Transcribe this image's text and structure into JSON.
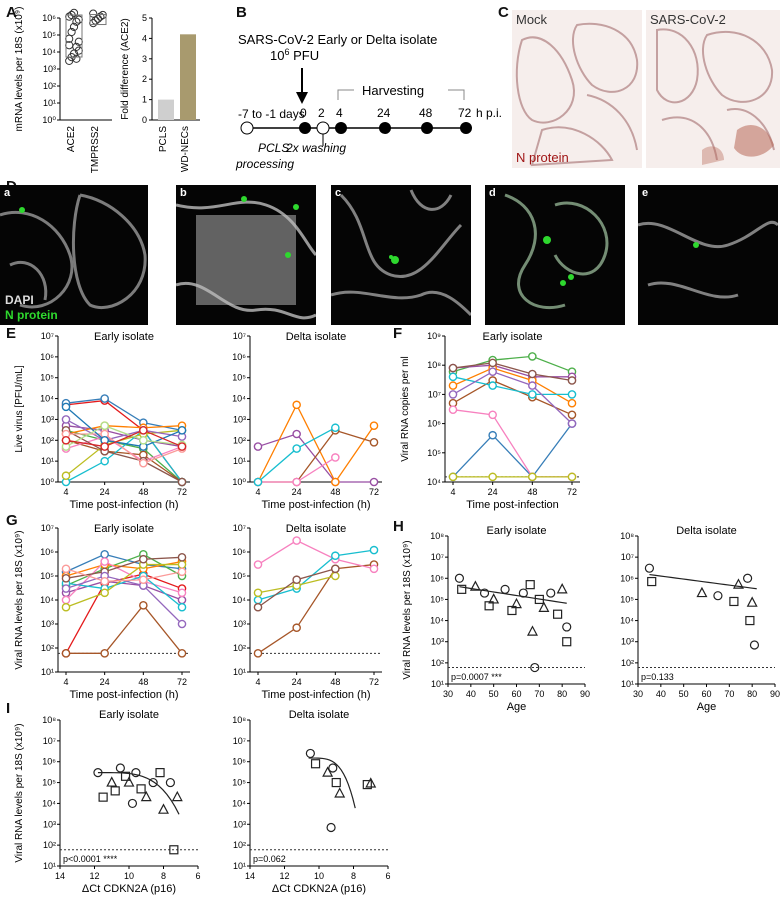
{
  "panels": {
    "A": {
      "label": "A",
      "left": {
        "ylabel": "mRNA levels per 18S (x10⁹)",
        "ticks": [
          "10⁰",
          "10¹",
          "10²",
          "10³",
          "10⁴",
          "10⁵",
          "10⁶"
        ],
        "categories": [
          "ACE2",
          "TMPRSS2"
        ]
      },
      "right": {
        "ylabel": "Fold difference (ACE2)",
        "ticks": [
          "0",
          "1",
          "2",
          "3",
          "4",
          "5"
        ],
        "categories": [
          "PCLS",
          "WD-NECs"
        ]
      }
    },
    "B": {
      "label": "B",
      "line1": "SARS-CoV-2 Early or Delta isolate",
      "line2": "10",
      "line2sup": "6",
      "line2rest": " PFU",
      "harvesting": "Harvesting",
      "pre": "-7 to -1 days",
      "times": [
        "0",
        "2",
        "4",
        "24",
        "48",
        "72"
      ],
      "unit": "h p.i.",
      "pcls1": "PCLS",
      "pcls2": "processing",
      "washing": "2x washing"
    },
    "C": {
      "label": "C",
      "mock": "Mock",
      "sars": "SARS-CoV-2",
      "nprotein": "N protein"
    },
    "D": {
      "label": "D",
      "sub": [
        "a",
        "b",
        "c",
        "d",
        "e"
      ],
      "dapi": "DAPI",
      "nprotein": "N protein"
    },
    "E": {
      "label": "E",
      "ylabel": "Live virus [PFU/mL]",
      "xlabel": "Time post-infection (h)",
      "ticks": [
        "10⁰",
        "10¹",
        "10²",
        "10³",
        "10⁴",
        "10⁵",
        "10⁶",
        "10⁷"
      ],
      "left_title": "Early isolate",
      "right_title": "Delta isolate"
    },
    "F": {
      "label": "F",
      "ylabel": "Viral RNA copies per ml",
      "xlabel": "Time post-infection",
      "title": "Early isolate",
      "ticks": [
        "10⁴",
        "10⁵",
        "10⁶",
        "10⁷",
        "10⁸",
        "10⁹"
      ]
    },
    "G": {
      "label": "G",
      "ylabel": "Viral RNA levels per 18S (x10⁹)",
      "xlabel": "Time post-infection (h)",
      "ticks": [
        "10¹",
        "10²",
        "10³",
        "10⁴",
        "10⁵",
        "10⁶",
        "10⁷"
      ],
      "left_title": "Early isolate",
      "right_title": "Delta isolate"
    },
    "H": {
      "label": "H",
      "ylabel": "Viral RNA levels per 18S (x10⁹)",
      "xlabel": "Age",
      "ticks": [
        "10¹",
        "10²",
        "10³",
        "10⁴",
        "10⁵",
        "10⁶",
        "10⁷",
        "10⁸"
      ],
      "xticks": [
        "30",
        "40",
        "50",
        "60",
        "70",
        "80",
        "90"
      ],
      "left_title": "Early isolate",
      "right_title": "Delta isolate",
      "p_left": "p=0.0007 ***",
      "p_right": "p=0.133"
    },
    "I": {
      "label": "I",
      "ylabel": "Viral RNA levels per 18S (x10⁹)",
      "xlabel": "ΔCt CDKN2A (p16)",
      "ticks": [
        "10¹",
        "10²",
        "10³",
        "10⁴",
        "10⁵",
        "10⁶",
        "10⁷",
        "10⁸"
      ],
      "xticks_left": [
        "14",
        "12",
        "10",
        "8",
        "6"
      ],
      "xticks_right": [
        "14",
        "12",
        "10",
        "8",
        "6"
      ],
      "left_title": "Early isolate",
      "right_title": "Delta isolate",
      "p_left": "p<0.0001 ****",
      "p_right": "p=0.062"
    }
  },
  "colors": [
    "#e41a1c",
    "#377eb8",
    "#4daf4a",
    "#984ea3",
    "#ff7f00",
    "#a65628",
    "#f781bf",
    "#17becf",
    "#bcbd22",
    "#8c564b",
    "#9467bd",
    "#fb9a99",
    "#1f78b4",
    "#b2df8a",
    "#d62728",
    "#6a3d9a",
    "#e377c2",
    "#ff9896"
  ],
  "chart_data": [
    {
      "type": "scatter",
      "panel": "A-left",
      "categories": [
        "ACE2",
        "TMPRSS2"
      ],
      "ylog": true,
      "ylim": [
        1,
        1000000
      ],
      "values": [
        [
          3000,
          5000,
          8000,
          20000,
          40000,
          60000,
          150000,
          300000,
          600000,
          800000,
          1200000,
          1500000,
          2000000,
          4000,
          12000,
          25000
        ],
        [
          500000,
          700000,
          900000,
          1200000,
          1500000,
          1800000
        ]
      ]
    },
    {
      "type": "bar",
      "panel": "A-right",
      "categories": [
        "PCLS",
        "WD-NECs"
      ],
      "values": [
        1.0,
        4.2
      ],
      "ylim": [
        0,
        5
      ]
    },
    {
      "type": "line",
      "panel": "E-left",
      "title": "Early isolate",
      "x": [
        4,
        24,
        48,
        72
      ],
      "ylog": true,
      "ylim": [
        1,
        10000000
      ],
      "series": [
        {
          "values": [
            5000,
            8000,
            300,
            1
          ]
        },
        {
          "values": [
            6000,
            10000,
            700,
            300
          ]
        },
        {
          "values": [
            300,
            100,
            40,
            1
          ]
        },
        {
          "values": [
            500,
            300,
            100,
            50
          ]
        },
        {
          "values": [
            200,
            500,
            400,
            500
          ]
        },
        {
          "values": [
            100,
            30,
            20,
            1
          ]
        },
        {
          "values": [
            40,
            150,
            10,
            50
          ]
        },
        {
          "values": [
            1,
            10,
            300,
            1
          ]
        },
        {
          "values": [
            2,
            60,
            200,
            300
          ]
        },
        {
          "values": [
            300,
            30,
            10,
            1
          ]
        },
        {
          "values": [
            1000,
            100,
            300,
            150
          ]
        },
        {
          "values": [
            200,
            200,
            8,
            40
          ]
        },
        {
          "values": [
            4000,
            100,
            50,
            300
          ]
        },
        {
          "values": [
            50,
            500,
            100,
            60
          ]
        },
        {
          "values": [
            100,
            50,
            300,
            50
          ]
        }
      ]
    },
    {
      "type": "line",
      "panel": "E-right",
      "title": "Delta isolate",
      "x": [
        4,
        24,
        48,
        72
      ],
      "ylog": true,
      "ylim": [
        1,
        10000000
      ],
      "series": [
        {
          "values": [
            50,
            200,
            1,
            1
          ]
        },
        {
          "values": [
            1,
            5000,
            1,
            500
          ]
        },
        {
          "values": [
            1,
            1,
            300,
            80
          ]
        },
        {
          "values": [
            1,
            1,
            15,
            null
          ]
        },
        {
          "values": [
            1,
            40,
            400,
            null
          ]
        }
      ]
    },
    {
      "type": "line",
      "panel": "F",
      "title": "Early isolate",
      "x": [
        4,
        24,
        48,
        72
      ],
      "ylog": true,
      "ylim": [
        10000,
        1000000000
      ],
      "series": [
        {
          "values": [
            15000,
            400000,
            15000,
            1000000
          ]
        },
        {
          "values": [
            60000000,
            150000000,
            200000000,
            60000000
          ]
        },
        {
          "values": [
            80000000,
            100000000,
            40000000,
            40000000
          ]
        },
        {
          "values": [
            20000000,
            80000000,
            30000000,
            5000000
          ]
        },
        {
          "values": [
            5000000,
            30000000,
            8000000,
            2000000
          ]
        },
        {
          "values": [
            3000000,
            2000000,
            15000,
            15000
          ]
        },
        {
          "values": [
            40000000,
            20000000,
            10000000,
            10000000
          ]
        },
        {
          "values": [
            15000,
            15000,
            15000,
            15000
          ]
        },
        {
          "values": [
            80000000,
            120000000,
            50000000,
            30000000
          ]
        },
        {
          "values": [
            10000000,
            60000000,
            20000000,
            1000000
          ]
        }
      ]
    },
    {
      "type": "line",
      "panel": "G-left",
      "title": "Early isolate",
      "x": [
        4,
        24,
        48,
        72
      ],
      "ylog": true,
      "ylim": [
        10,
        10000000
      ],
      "series": [
        {
          "values": [
            60,
            50000,
            120000,
            30000
          ]
        },
        {
          "values": [
            150000,
            800000,
            300000,
            200000
          ]
        },
        {
          "values": [
            40000,
            200000,
            800000,
            100000
          ]
        },
        {
          "values": [
            20000,
            60000,
            40000,
            10000
          ]
        },
        {
          "values": [
            100000,
            300000,
            200000,
            400000
          ]
        },
        {
          "values": [
            60,
            60,
            6000,
            60
          ]
        },
        {
          "values": [
            10000,
            400000,
            60000,
            20000
          ]
        },
        {
          "values": [
            50000,
            30000,
            100000,
            5000
          ]
        },
        {
          "values": [
            5000,
            20000,
            300000,
            300000
          ]
        },
        {
          "values": [
            80000,
            150000,
            500000,
            600000
          ]
        },
        {
          "values": [
            30000,
            100000,
            40000,
            1000
          ]
        },
        {
          "values": [
            200000,
            60000,
            70000,
            150000
          ]
        }
      ]
    },
    {
      "type": "line",
      "panel": "G-right",
      "title": "Delta isolate",
      "x": [
        4,
        24,
        48,
        72
      ],
      "ylog": true,
      "ylim": [
        10,
        10000000
      ],
      "series": [
        {
          "values": [
            60,
            700,
            200000,
            300000
          ]
        },
        {
          "values": [
            300000,
            3000000,
            500000,
            200000
          ]
        },
        {
          "values": [
            10000,
            30000,
            700000,
            1200000
          ]
        },
        {
          "values": [
            20000,
            40000,
            100000,
            null
          ]
        },
        {
          "values": [
            5000,
            70000,
            200000,
            null
          ]
        }
      ]
    },
    {
      "type": "scatter",
      "panel": "H-left",
      "title": "Early isolate",
      "xlabel": "Age",
      "xlim": [
        30,
        90
      ],
      "ylog": true,
      "ylim": [
        10,
        100000000
      ],
      "points": [
        [
          35,
          1000000
        ],
        [
          36,
          300000
        ],
        [
          42,
          400000
        ],
        [
          46,
          200000
        ],
        [
          48,
          50000
        ],
        [
          50,
          100000
        ],
        [
          55,
          300000
        ],
        [
          58,
          30000
        ],
        [
          60,
          60000
        ],
        [
          63,
          200000
        ],
        [
          66,
          500000
        ],
        [
          67,
          3000
        ],
        [
          68,
          60
        ],
        [
          70,
          100000
        ],
        [
          72,
          40000
        ],
        [
          75,
          200000
        ],
        [
          78,
          20000
        ],
        [
          80,
          300000
        ],
        [
          82,
          5000
        ],
        [
          82,
          1000
        ]
      ]
    },
    {
      "type": "scatter",
      "panel": "H-right",
      "title": "Delta isolate",
      "xlabel": "Age",
      "xlim": [
        30,
        90
      ],
      "ylog": true,
      "ylim": [
        10,
        100000000
      ],
      "points": [
        [
          35,
          3000000
        ],
        [
          36,
          700000
        ],
        [
          58,
          200000
        ],
        [
          65,
          150000
        ],
        [
          72,
          80000
        ],
        [
          74,
          500000
        ],
        [
          78,
          1000000
        ],
        [
          79,
          10000
        ],
        [
          80,
          70000
        ],
        [
          81,
          700
        ]
      ]
    },
    {
      "type": "scatter",
      "panel": "I-left",
      "title": "Early isolate",
      "xlabel": "ΔCt CDKN2A (p16)",
      "xlim": [
        14,
        6
      ],
      "ylog": true,
      "ylim": [
        10,
        100000000
      ],
      "points": [
        [
          11.8,
          300000
        ],
        [
          11.5,
          20000
        ],
        [
          11.0,
          100000
        ],
        [
          10.5,
          500000
        ],
        [
          10.2,
          200000
        ],
        [
          10.0,
          100000
        ],
        [
          9.6,
          300000
        ],
        [
          9.3,
          50000
        ],
        [
          9.0,
          20000
        ],
        [
          8.6,
          100000
        ],
        [
          8.2,
          300000
        ],
        [
          8.0,
          5000
        ],
        [
          7.6,
          100000
        ],
        [
          7.4,
          60
        ],
        [
          7.2,
          20000
        ],
        [
          9.8,
          10000
        ],
        [
          10.8,
          40000
        ]
      ]
    },
    {
      "type": "scatter",
      "panel": "I-right",
      "title": "Delta isolate",
      "xlabel": "ΔCt CDKN2A (p16)",
      "xlim": [
        14,
        6
      ],
      "ylog": true,
      "ylim": [
        10,
        100000000
      ],
      "points": [
        [
          10.5,
          2500000
        ],
        [
          10.2,
          800000
        ],
        [
          9.5,
          300000
        ],
        [
          9.2,
          500000
        ],
        [
          9.0,
          100000
        ],
        [
          8.8,
          30000
        ],
        [
          9.3,
          700
        ],
        [
          7.2,
          80000
        ],
        [
          7.0,
          90000
        ]
      ]
    }
  ]
}
